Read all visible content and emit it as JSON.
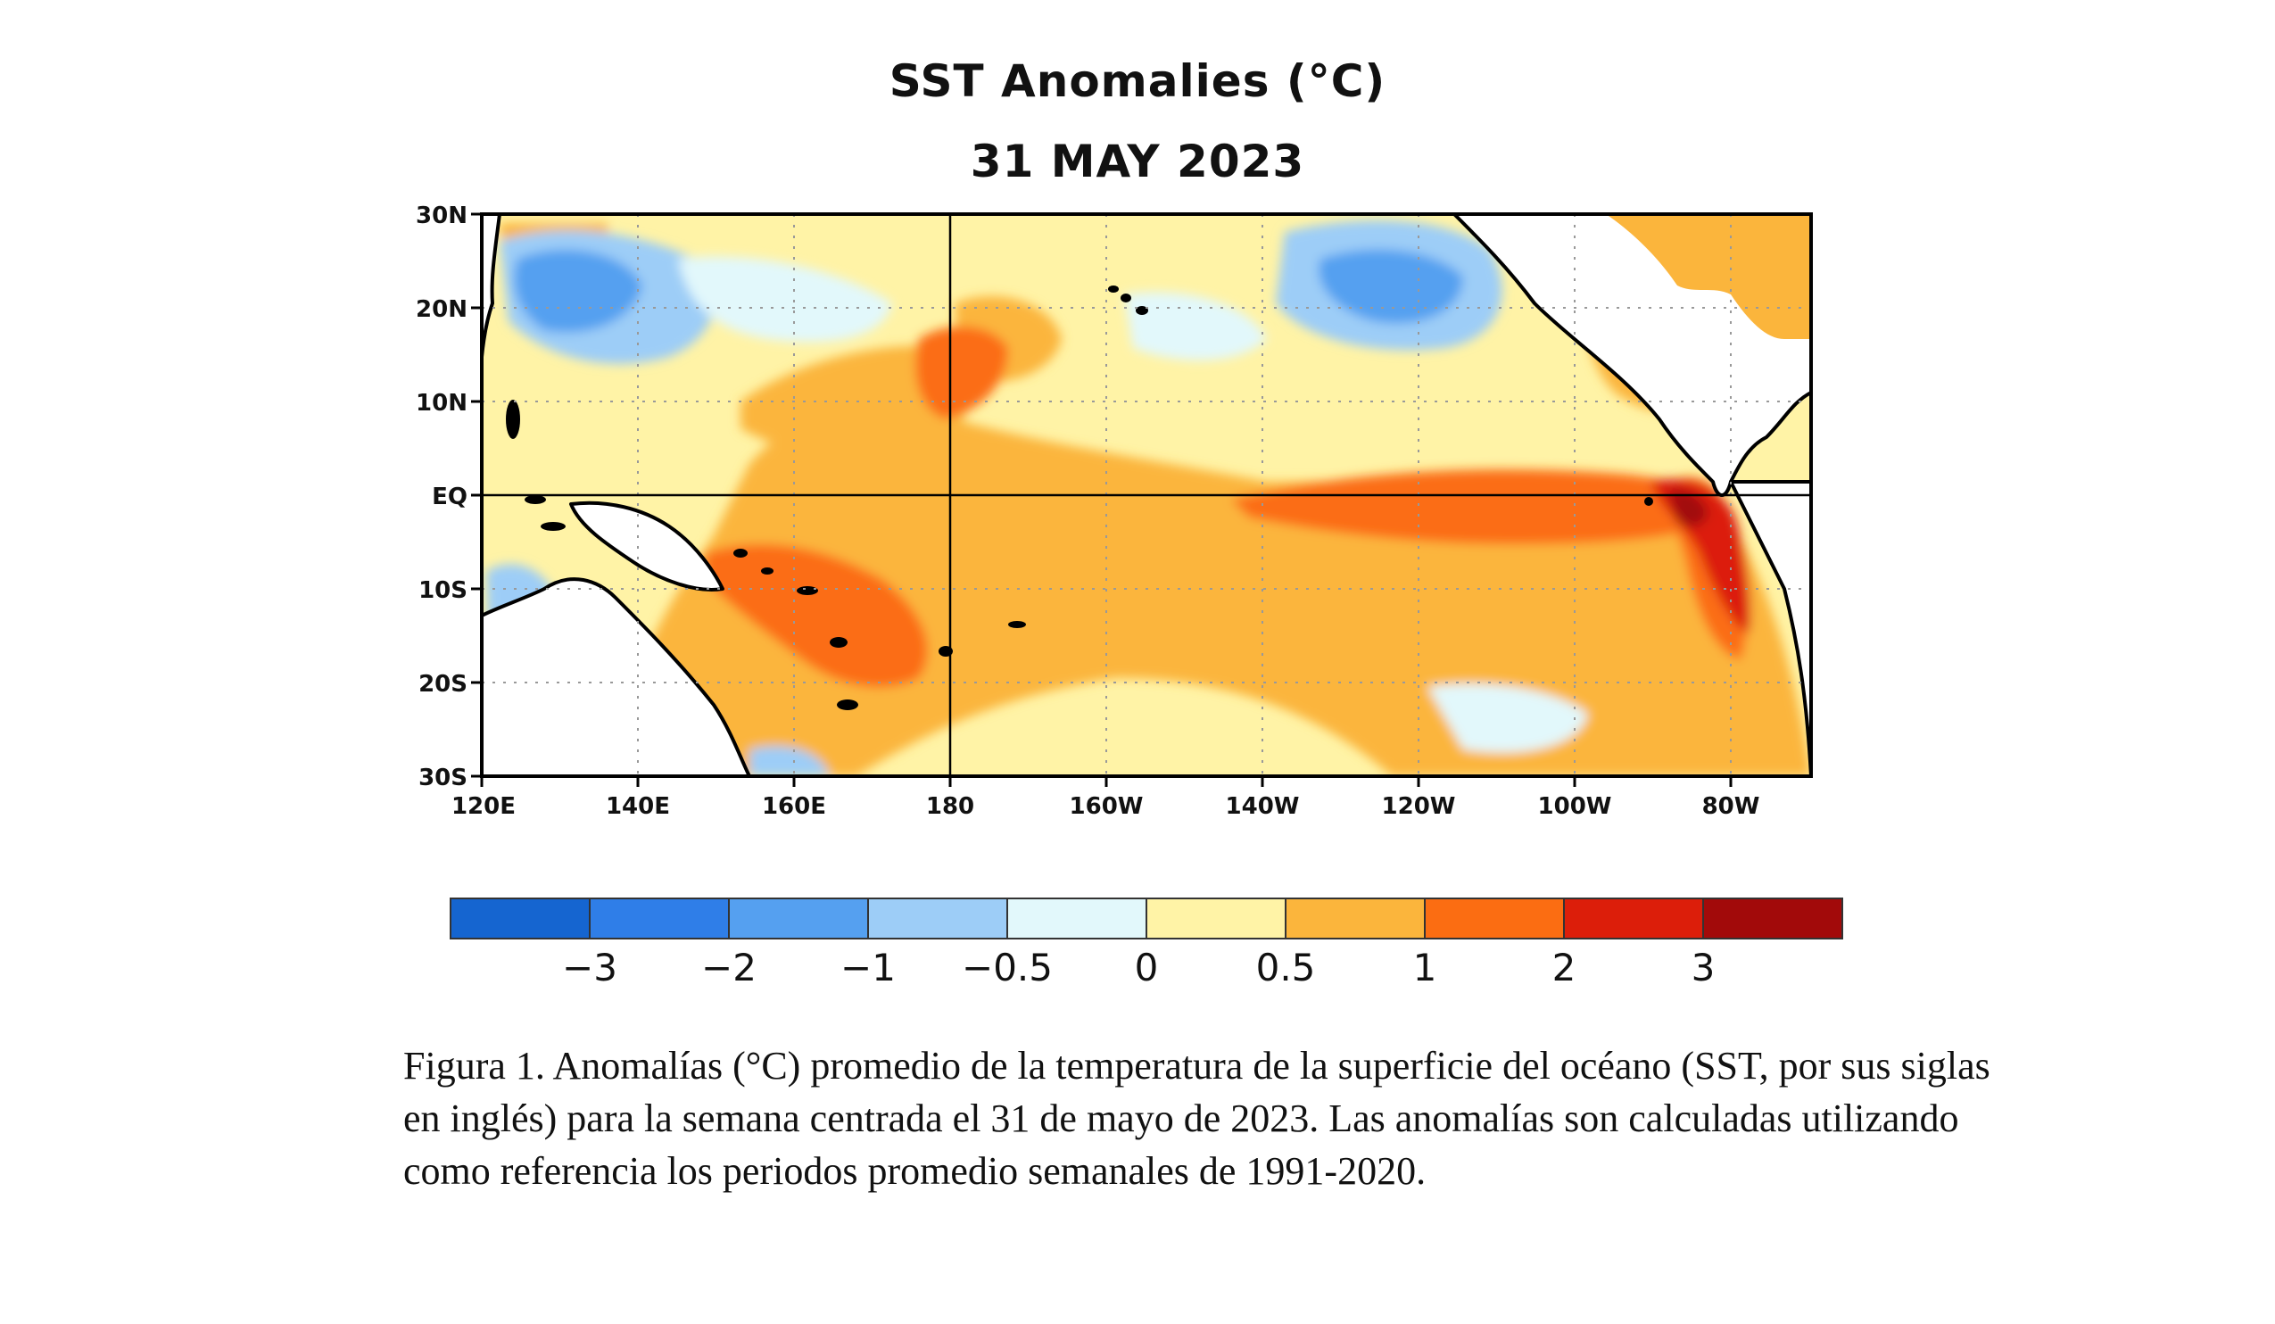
{
  "title": "SST Anomalies (°C)",
  "date": "31 MAY 2023",
  "lat_labels": [
    "30N",
    "20N",
    "10N",
    "EQ",
    "10S",
    "20S",
    "30S"
  ],
  "lon_labels": [
    "120E",
    "140E",
    "160E",
    "180",
    "160W",
    "140W",
    "120W",
    "100W",
    "80W"
  ],
  "colorbar": {
    "colors": [
      "#1565d0",
      "#2f7ee8",
      "#55a0f0",
      "#9dcdf7",
      "#e2f8fb",
      "#fff3a6",
      "#fbb53c",
      "#fb6d12",
      "#dc1e0a",
      "#a20a0a"
    ],
    "labels": [
      "−3",
      "−2",
      "−1",
      "−0.5",
      "0",
      "0.5",
      "1",
      "2",
      "3"
    ]
  },
  "caption": "Figura 1. Anomalías (°C) promedio de la temperatura de la superficie del océano (SST, por sus siglas en inglés) para la semana centrada el 31 de mayo de 2023. Las anomalías son calculadas utilizando como referencia los periodos promedio semanales de 1991-2020.",
  "map": {
    "lon_range": [
      120,
      290
    ],
    "lat_range": [
      -30,
      30
    ],
    "projection": "equirectangular",
    "colors": {
      "land": "#ffffff",
      "coast": "#000000",
      "grid": "#999999"
    }
  }
}
